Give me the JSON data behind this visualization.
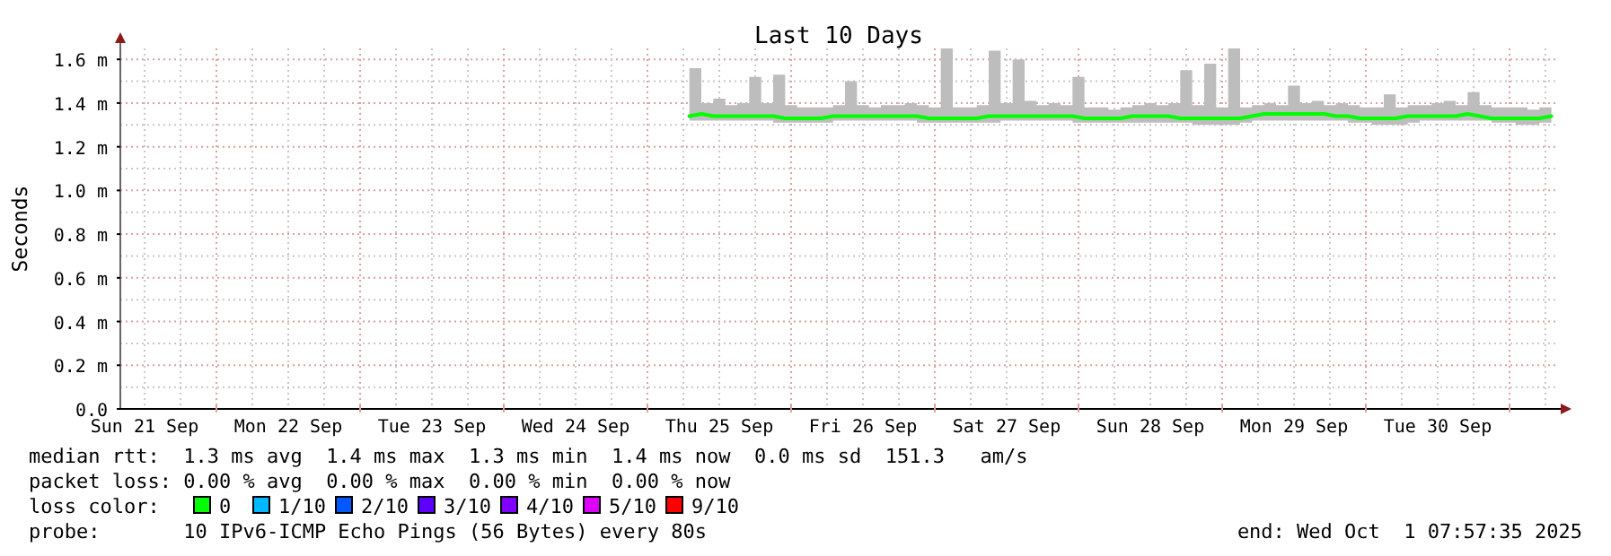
{
  "chart_data": {
    "type": "line",
    "title": "Last 10 Days",
    "ylabel": "Seconds",
    "legend_title": "loss color:",
    "legend": "bottom",
    "grid": true,
    "marker": "none",
    "line_style": "solid",
    "xlim": [
      "2025-09-21T07:57",
      "2025-10-01T07:57"
    ],
    "xticks": [
      {
        "value": "2025-09-21T12:00",
        "label": "Sun 21 Sep"
      },
      {
        "value": "2025-09-21T18:00",
        "label": null
      },
      {
        "value": "2025-09-22T00:00",
        "label": null
      },
      {
        "value": "2025-09-22T06:00",
        "label": null
      },
      {
        "value": "2025-09-22T12:00",
        "label": "Mon 22 Sep"
      },
      {
        "value": "2025-09-22T18:00",
        "label": null
      },
      {
        "value": "2025-09-23T00:00",
        "label": null
      },
      {
        "value": "2025-09-23T06:00",
        "label": null
      },
      {
        "value": "2025-09-23T12:00",
        "label": "Tue 23 Sep"
      },
      {
        "value": "2025-09-23T18:00",
        "label": null
      },
      {
        "value": "2025-09-24T00:00",
        "label": null
      },
      {
        "value": "2025-09-24T06:00",
        "label": null
      },
      {
        "value": "2025-09-24T12:00",
        "label": "Wed 24 Sep"
      },
      {
        "value": "2025-09-24T18:00",
        "label": null
      },
      {
        "value": "2025-09-25T00:00",
        "label": null
      },
      {
        "value": "2025-09-25T06:00",
        "label": null
      },
      {
        "value": "2025-09-25T12:00",
        "label": "Thu 25 Sep"
      },
      {
        "value": "2025-09-25T18:00",
        "label": null
      },
      {
        "value": "2025-09-26T00:00",
        "label": null
      },
      {
        "value": "2025-09-26T06:00",
        "label": null
      },
      {
        "value": "2025-09-26T12:00",
        "label": "Fri 26 Sep"
      },
      {
        "value": "2025-09-26T18:00",
        "label": null
      },
      {
        "value": "2025-09-27T00:00",
        "label": null
      },
      {
        "value": "2025-09-27T06:00",
        "label": null
      },
      {
        "value": "2025-09-27T12:00",
        "label": "Sat 27 Sep"
      },
      {
        "value": "2025-09-27T18:00",
        "label": null
      },
      {
        "value": "2025-09-28T00:00",
        "label": null
      },
      {
        "value": "2025-09-28T06:00",
        "label": null
      },
      {
        "value": "2025-09-28T12:00",
        "label": "Sun 28 Sep"
      },
      {
        "value": "2025-09-28T18:00",
        "label": null
      },
      {
        "value": "2025-09-29T00:00",
        "label": null
      },
      {
        "value": "2025-09-29T06:00",
        "label": null
      },
      {
        "value": "2025-09-29T12:00",
        "label": "Mon 29 Sep"
      },
      {
        "value": "2025-09-29T18:00",
        "label": null
      },
      {
        "value": "2025-09-30T00:00",
        "label": null
      },
      {
        "value": "2025-09-30T06:00",
        "label": null
      },
      {
        "value": "2025-09-30T12:00",
        "label": "Tue 30 Sep"
      },
      {
        "value": "2025-09-30T18:00",
        "label": null
      },
      {
        "value": "2025-10-01T00:00",
        "label": null
      },
      {
        "value": "2025-10-01T06:00",
        "label": null
      }
    ],
    "ylim": [
      0,
      1.65
    ],
    "yticks": [
      {
        "value": 0,
        "label": "0.0"
      },
      {
        "value": 0.1,
        "label": null
      },
      {
        "value": 0.2,
        "label": "0.2 m"
      },
      {
        "value": 0.3,
        "label": null
      },
      {
        "value": 0.4,
        "label": "0.4 m"
      },
      {
        "value": 0.5,
        "label": null
      },
      {
        "value": 0.6,
        "label": "0.6 m"
      },
      {
        "value": 0.7,
        "label": null
      },
      {
        "value": 0.8,
        "label": "0.8 m"
      },
      {
        "value": 0.9,
        "label": null
      },
      {
        "value": 1.0,
        "label": "1.0 m"
      },
      {
        "value": 1.1,
        "label": null
      },
      {
        "value": 1.2,
        "label": "1.2 m"
      },
      {
        "value": 1.3,
        "label": null
      },
      {
        "value": 1.4,
        "label": "1.4 m"
      },
      {
        "value": 1.5,
        "label": null
      },
      {
        "value": 1.6,
        "label": "1.6 m"
      }
    ],
    "x": [
      "2025-09-25T07:00",
      "2025-09-25T09:00",
      "2025-09-25T11:00",
      "2025-09-25T13:00",
      "2025-09-25T15:00",
      "2025-09-25T17:00",
      "2025-09-25T19:00",
      "2025-09-25T21:00",
      "2025-09-25T23:00",
      "2025-09-26T01:00",
      "2025-09-26T03:00",
      "2025-09-26T05:00",
      "2025-09-26T07:00",
      "2025-09-26T09:00",
      "2025-09-26T11:00",
      "2025-09-26T13:00",
      "2025-09-26T15:00",
      "2025-09-26T17:00",
      "2025-09-26T19:00",
      "2025-09-26T21:00",
      "2025-09-26T23:00",
      "2025-09-27T01:00",
      "2025-09-27T03:00",
      "2025-09-27T05:00",
      "2025-09-27T07:00",
      "2025-09-27T09:00",
      "2025-09-27T11:00",
      "2025-09-27T13:00",
      "2025-09-27T15:00",
      "2025-09-27T17:00",
      "2025-09-27T19:00",
      "2025-09-27T21:00",
      "2025-09-27T23:00",
      "2025-09-28T01:00",
      "2025-09-28T03:00",
      "2025-09-28T05:00",
      "2025-09-28T07:00",
      "2025-09-28T09:00",
      "2025-09-28T11:00",
      "2025-09-28T13:00",
      "2025-09-28T15:00",
      "2025-09-28T17:00",
      "2025-09-28T19:00",
      "2025-09-28T21:00",
      "2025-09-28T23:00",
      "2025-09-29T01:00",
      "2025-09-29T03:00",
      "2025-09-29T05:00",
      "2025-09-29T07:00",
      "2025-09-29T09:00",
      "2025-09-29T11:00",
      "2025-09-29T13:00",
      "2025-09-29T15:00",
      "2025-09-29T17:00",
      "2025-09-29T19:00",
      "2025-09-29T21:00",
      "2025-09-29T23:00",
      "2025-09-30T01:00",
      "2025-09-30T03:00",
      "2025-09-30T05:00",
      "2025-09-30T07:00",
      "2025-09-30T09:00",
      "2025-09-30T11:00",
      "2025-09-30T13:00",
      "2025-09-30T15:00",
      "2025-09-30T17:00",
      "2025-09-30T19:00",
      "2025-09-30T21:00",
      "2025-09-30T23:00",
      "2025-10-01T01:00",
      "2025-10-01T03:00",
      "2025-10-01T05:00",
      "2025-10-01T07:00"
    ],
    "series": [
      {
        "name": "0",
        "color": "#00ff00",
        "values": [
          1.34,
          1.35,
          1.34,
          1.34,
          1.34,
          1.34,
          1.34,
          1.34,
          1.33,
          1.33,
          1.33,
          1.33,
          1.34,
          1.34,
          1.34,
          1.34,
          1.34,
          1.34,
          1.34,
          1.34,
          1.33,
          1.33,
          1.33,
          1.33,
          1.33,
          1.34,
          1.34,
          1.34,
          1.34,
          1.34,
          1.34,
          1.34,
          1.34,
          1.33,
          1.33,
          1.33,
          1.33,
          1.34,
          1.34,
          1.34,
          1.34,
          1.33,
          1.33,
          1.33,
          1.33,
          1.33,
          1.33,
          1.34,
          1.35,
          1.35,
          1.35,
          1.35,
          1.35,
          1.35,
          1.34,
          1.34,
          1.33,
          1.33,
          1.33,
          1.33,
          1.34,
          1.34,
          1.34,
          1.34,
          1.34,
          1.35,
          1.34,
          1.33,
          1.33,
          1.33,
          1.33,
          1.33,
          1.34
        ],
        "lower": [
          1.32,
          1.32,
          1.32,
          1.32,
          1.32,
          1.32,
          1.32,
          1.31,
          1.31,
          1.31,
          1.31,
          1.31,
          1.32,
          1.32,
          1.32,
          1.32,
          1.32,
          1.32,
          1.32,
          1.31,
          1.31,
          1.31,
          1.31,
          1.31,
          1.31,
          1.31,
          1.32,
          1.32,
          1.32,
          1.32,
          1.32,
          1.32,
          1.31,
          1.31,
          1.31,
          1.31,
          1.31,
          1.31,
          1.31,
          1.31,
          1.31,
          1.31,
          1.3,
          1.3,
          1.3,
          1.3,
          1.31,
          1.32,
          1.32,
          1.32,
          1.32,
          1.32,
          1.32,
          1.32,
          1.32,
          1.31,
          1.31,
          1.3,
          1.3,
          1.3,
          1.31,
          1.32,
          1.32,
          1.32,
          1.32,
          1.32,
          1.32,
          1.31,
          1.31,
          1.3,
          1.3,
          1.31,
          1.31
        ],
        "upper": [
          1.56,
          1.4,
          1.42,
          1.39,
          1.4,
          1.52,
          1.4,
          1.53,
          1.39,
          1.38,
          1.38,
          1.38,
          1.39,
          1.5,
          1.39,
          1.38,
          1.39,
          1.39,
          1.4,
          1.39,
          1.38,
          1.65,
          1.38,
          1.38,
          1.39,
          1.64,
          1.4,
          1.6,
          1.41,
          1.39,
          1.4,
          1.39,
          1.52,
          1.38,
          1.38,
          1.37,
          1.38,
          1.39,
          1.4,
          1.39,
          1.4,
          1.55,
          1.39,
          1.58,
          1.38,
          1.65,
          1.38,
          1.39,
          1.4,
          1.39,
          1.48,
          1.4,
          1.41,
          1.39,
          1.4,
          1.39,
          1.38,
          1.38,
          1.44,
          1.38,
          1.39,
          1.39,
          1.4,
          1.41,
          1.39,
          1.45,
          1.39,
          1.38,
          1.38,
          1.38,
          1.37,
          1.38,
          1.43
        ]
      },
      {
        "name": "1/10",
        "color": "#00b8ff",
        "values": [
          null,
          null,
          null,
          null,
          null,
          null,
          null,
          null,
          null,
          null,
          null,
          null,
          null,
          null,
          null,
          null,
          null,
          null,
          null,
          null,
          null,
          null,
          null,
          null,
          null,
          null,
          null,
          null,
          null,
          null,
          null,
          null,
          null,
          null,
          null,
          null,
          null,
          null,
          null,
          null,
          null,
          null,
          null,
          null,
          null,
          null,
          null,
          null,
          null,
          null,
          null,
          null,
          null,
          null,
          null,
          null,
          null,
          null,
          null,
          null,
          null,
          null,
          null,
          null,
          null,
          null,
          null,
          null,
          null,
          null,
          null,
          null,
          null
        ]
      },
      {
        "name": "2/10",
        "color": "#0059ff",
        "values": [
          null,
          null,
          null,
          null,
          null,
          null,
          null,
          null,
          null,
          null,
          null,
          null,
          null,
          null,
          null,
          null,
          null,
          null,
          null,
          null,
          null,
          null,
          null,
          null,
          null,
          null,
          null,
          null,
          null,
          null,
          null,
          null,
          null,
          null,
          null,
          null,
          null,
          null,
          null,
          null,
          null,
          null,
          null,
          null,
          null,
          null,
          null,
          null,
          null,
          null,
          null,
          null,
          null,
          null,
          null,
          null,
          null,
          null,
          null,
          null,
          null,
          null,
          null,
          null,
          null,
          null,
          null,
          null,
          null,
          null,
          null,
          null,
          null
        ]
      },
      {
        "name": "3/10",
        "color": "#5e00ff",
        "values": [
          null,
          null,
          null,
          null,
          null,
          null,
          null,
          null,
          null,
          null,
          null,
          null,
          null,
          null,
          null,
          null,
          null,
          null,
          null,
          null,
          null,
          null,
          null,
          null,
          null,
          null,
          null,
          null,
          null,
          null,
          null,
          null,
          null,
          null,
          null,
          null,
          null,
          null,
          null,
          null,
          null,
          null,
          null,
          null,
          null,
          null,
          null,
          null,
          null,
          null,
          null,
          null,
          null,
          null,
          null,
          null,
          null,
          null,
          null,
          null,
          null,
          null,
          null,
          null,
          null,
          null,
          null,
          null,
          null,
          null,
          null,
          null,
          null
        ]
      },
      {
        "name": "4/10",
        "color": "#7e00ff",
        "values": [
          null,
          null,
          null,
          null,
          null,
          null,
          null,
          null,
          null,
          null,
          null,
          null,
          null,
          null,
          null,
          null,
          null,
          null,
          null,
          null,
          null,
          null,
          null,
          null,
          null,
          null,
          null,
          null,
          null,
          null,
          null,
          null,
          null,
          null,
          null,
          null,
          null,
          null,
          null,
          null,
          null,
          null,
          null,
          null,
          null,
          null,
          null,
          null,
          null,
          null,
          null,
          null,
          null,
          null,
          null,
          null,
          null,
          null,
          null,
          null,
          null,
          null,
          null,
          null,
          null,
          null,
          null,
          null,
          null,
          null,
          null,
          null,
          null
        ]
      },
      {
        "name": "5/10",
        "color": "#dd00ff",
        "values": [
          null,
          null,
          null,
          null,
          null,
          null,
          null,
          null,
          null,
          null,
          null,
          null,
          null,
          null,
          null,
          null,
          null,
          null,
          null,
          null,
          null,
          null,
          null,
          null,
          null,
          null,
          null,
          null,
          null,
          null,
          null,
          null,
          null,
          null,
          null,
          null,
          null,
          null,
          null,
          null,
          null,
          null,
          null,
          null,
          null,
          null,
          null,
          null,
          null,
          null,
          null,
          null,
          null,
          null,
          null,
          null,
          null,
          null,
          null,
          null,
          null,
          null,
          null,
          null,
          null,
          null,
          null,
          null,
          null,
          null,
          null,
          null,
          null
        ]
      },
      {
        "name": "9/10",
        "color": "#ff0000",
        "values": [
          null,
          null,
          null,
          null,
          null,
          null,
          null,
          null,
          null,
          null,
          null,
          null,
          null,
          null,
          null,
          null,
          null,
          null,
          null,
          null,
          null,
          null,
          null,
          null,
          null,
          null,
          null,
          null,
          null,
          null,
          null,
          null,
          null,
          null,
          null,
          null,
          null,
          null,
          null,
          null,
          null,
          null,
          null,
          null,
          null,
          null,
          null,
          null,
          null,
          null,
          null,
          null,
          null,
          null,
          null,
          null,
          null,
          null,
          null,
          null,
          null,
          null,
          null,
          null,
          null,
          null,
          null,
          null,
          null,
          null,
          null,
          null,
          null
        ]
      }
    ],
    "annotations": [
      "median rtt:  1.3 ms avg  1.4 ms max  1.3 ms min  1.4 ms now  0.0 ms sd  151.3   am/s",
      "packet loss: 0.00 % avg  0.00 % max  0.00 % min  0.00 % now",
      "probe:       10 IPv6-ICMP Echo Pings (56 Bytes) every 80s",
      "end: Wed Oct  1 07:57:35 2025"
    ]
  }
}
